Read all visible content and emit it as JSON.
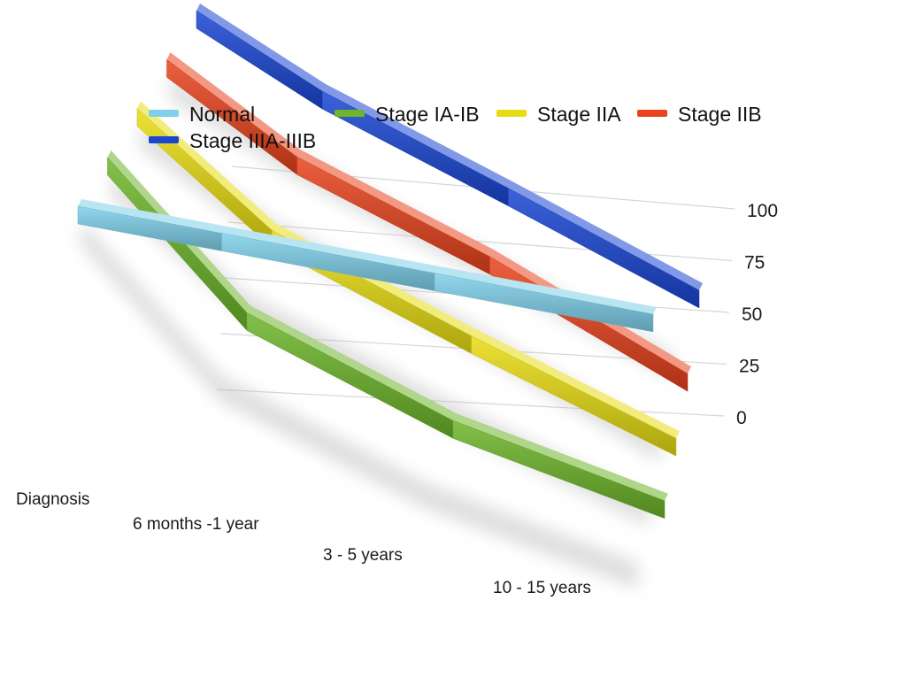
{
  "chart_data": {
    "type": "line",
    "style": "3d-ribbon",
    "title": "",
    "xlabel": "",
    "ylabel": "",
    "categories": [
      "Diagnosis",
      "6 months -1 year",
      "3 - 5 years",
      "10 - 15 years"
    ],
    "yticks": [
      "100",
      "75",
      "50",
      "25",
      "0"
    ],
    "ylim": [
      0,
      100
    ],
    "grid": true,
    "legend_position": "top",
    "series": [
      {
        "name": "Normal",
        "color": "#7fd0ea",
        "values": [
          100,
          100,
          100,
          100
        ]
      },
      {
        "name": "Stage IA-IB",
        "color": "#6db52a",
        "values": [
          100,
          48,
          22,
          8
        ]
      },
      {
        "name": "Stage IIA",
        "color": "#e7dc13",
        "values": [
          100,
          60,
          35,
          12
        ]
      },
      {
        "name": "Stage IIB",
        "color": "#e8431d",
        "values": [
          100,
          70,
          48,
          18
        ]
      },
      {
        "name": "Stage IIIA-IIIB",
        "color": "#1a46d4",
        "values": [
          100,
          78,
          58,
          36
        ]
      }
    ]
  }
}
